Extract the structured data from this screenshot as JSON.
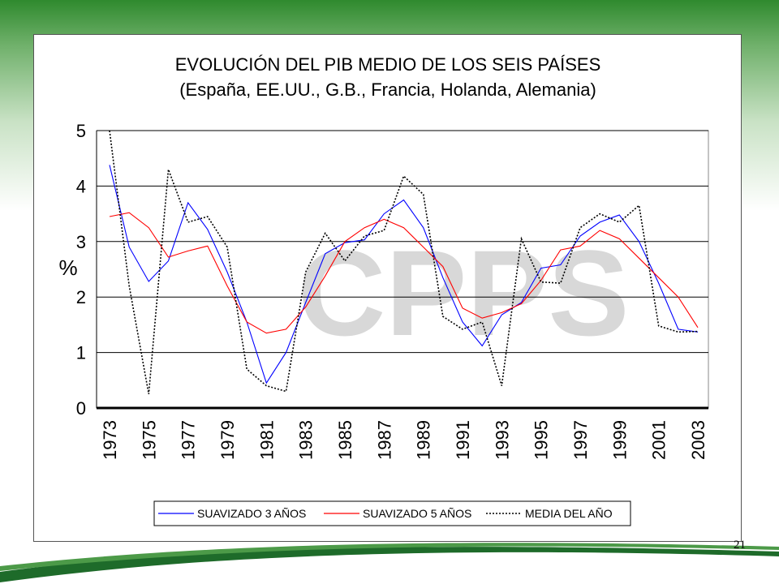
{
  "slide": {
    "page_number": "21",
    "watermark": "CPPS"
  },
  "colors": {
    "header_green": "#2f8a2e",
    "swoosh_green": "#1e6b2a",
    "series_3": "#0000ff",
    "series_5": "#ff0000",
    "series_media": "#000000",
    "watermark": "#d8d8d8"
  },
  "chart_data": {
    "type": "line",
    "title": "EVOLUCIÓN DEL PIB MEDIO DE LOS SEIS PAÍSES",
    "subtitle": "(España, EE.UU., G.B., Francia, Holanda, Alemania)",
    "xlabel": "",
    "ylabel": "%",
    "ylim": [
      0,
      5
    ],
    "yticks": [
      "0",
      "1",
      "2",
      "3",
      "4",
      "5"
    ],
    "grid": true,
    "legend_position": "bottom",
    "x": [
      1973,
      1974,
      1975,
      1976,
      1977,
      1978,
      1979,
      1980,
      1981,
      1982,
      1983,
      1984,
      1985,
      1986,
      1987,
      1988,
      1989,
      1990,
      1991,
      1992,
      1993,
      1994,
      1995,
      1996,
      1997,
      1998,
      1999,
      2000,
      2001,
      2002,
      2003
    ],
    "xtick_labels": [
      "1973",
      "1975",
      "1977",
      "1979",
      "1981",
      "1983",
      "1985",
      "1987",
      "1989",
      "1991",
      "1993",
      "1995",
      "1997",
      "1999",
      "2001",
      "2003"
    ],
    "series": [
      {
        "name": "SUAVIZADO 3 AÑOS",
        "color": "#0000ff",
        "style": "solid",
        "values": [
          4.38,
          2.9,
          2.28,
          2.65,
          3.7,
          3.22,
          2.45,
          1.55,
          0.45,
          1.0,
          1.9,
          2.78,
          2.98,
          3.03,
          3.5,
          3.75,
          3.25,
          2.35,
          1.55,
          1.12,
          1.68,
          1.9,
          2.52,
          2.58,
          3.1,
          3.35,
          3.48,
          3.0,
          2.25,
          1.42,
          1.37
        ]
      },
      {
        "name": "SUAVIZADO 5 AÑOS",
        "color": "#ff0000",
        "style": "solid",
        "values": [
          3.45,
          3.52,
          3.25,
          2.72,
          2.83,
          2.92,
          2.2,
          1.55,
          1.35,
          1.42,
          1.82,
          2.38,
          3.0,
          3.25,
          3.4,
          3.25,
          2.9,
          2.55,
          1.8,
          1.62,
          1.72,
          1.88,
          2.3,
          2.85,
          2.92,
          3.2,
          3.05,
          2.7,
          2.35,
          2.0,
          1.45
        ]
      },
      {
        "name": "MEDIA DEL AÑO",
        "color": "#000000",
        "style": "dotted",
        "values": [
          5.0,
          2.2,
          0.25,
          4.3,
          3.35,
          3.45,
          2.9,
          0.7,
          0.4,
          0.3,
          2.45,
          3.15,
          2.65,
          3.1,
          3.2,
          4.18,
          3.85,
          1.65,
          1.42,
          1.55,
          0.4,
          3.05,
          2.27,
          2.25,
          3.25,
          3.5,
          3.35,
          3.65,
          1.48,
          1.37,
          1.38
        ]
      }
    ]
  }
}
